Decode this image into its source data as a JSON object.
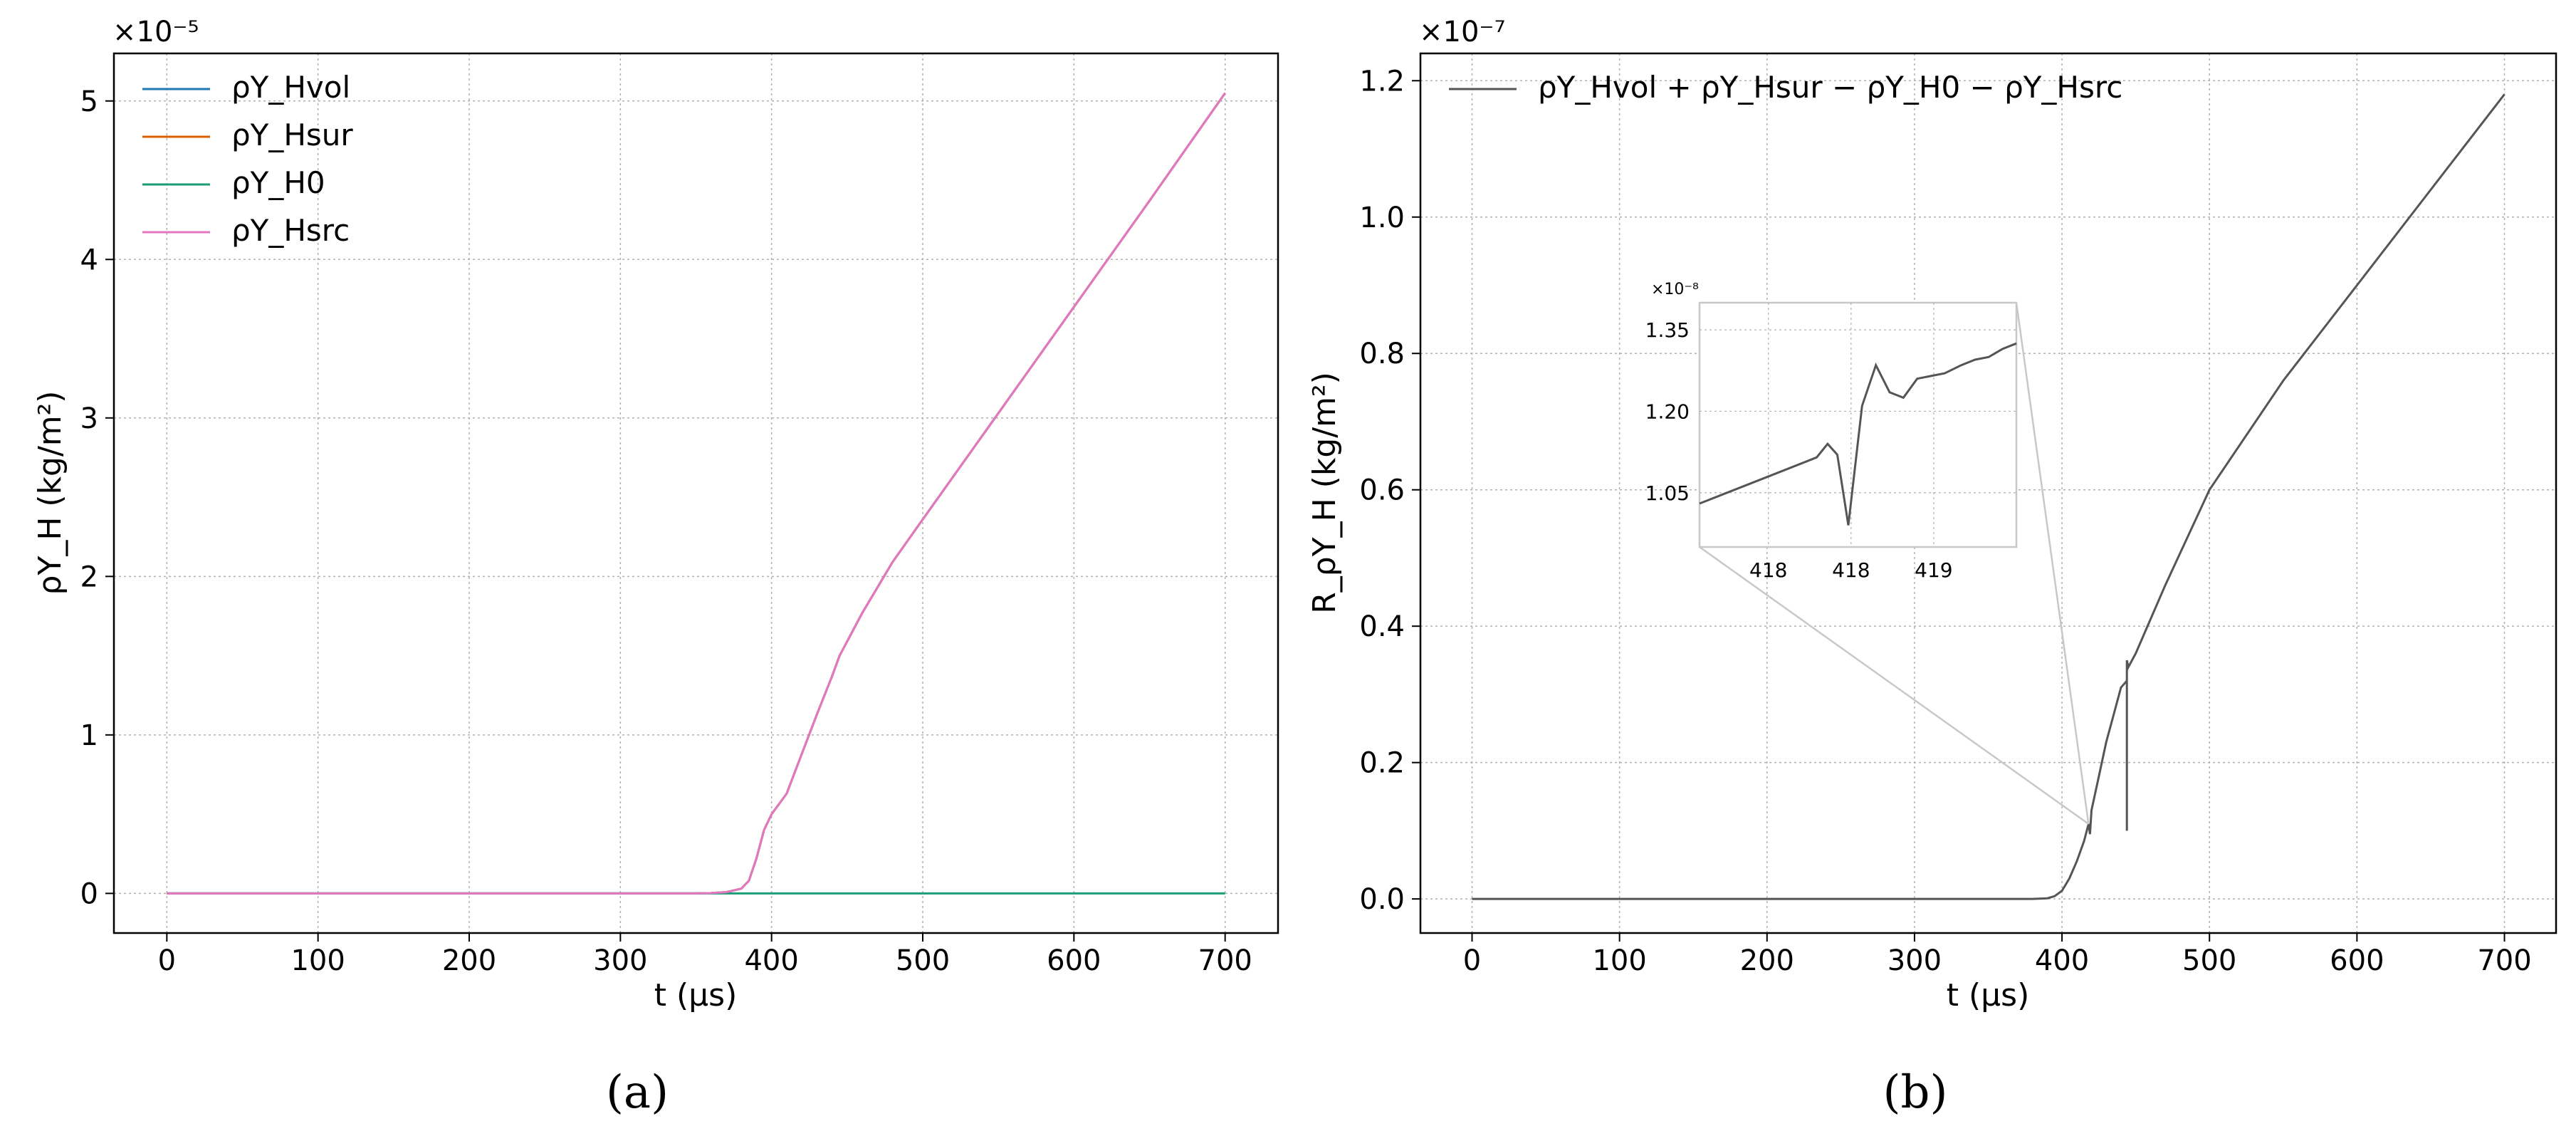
{
  "chart_data": [
    {
      "panel": "(a)",
      "type": "line",
      "xlabel": "t (μs)",
      "ylabel": "ρY_H (kg/m²)",
      "multiplier": "×10⁻⁵",
      "xlim": [
        -35,
        735
      ],
      "ylim": [
        -0.25,
        5.3
      ],
      "xticks": [
        0,
        100,
        200,
        300,
        400,
        500,
        600,
        700
      ],
      "yticks": [
        0,
        1,
        2,
        3,
        4,
        5
      ],
      "grid": true,
      "legend_position": "top-left",
      "series": [
        {
          "name": "ρY_Hvol",
          "color": "#1f77b4",
          "x": [
            0,
            350,
            360,
            370,
            380,
            385,
            390,
            395,
            400,
            410,
            420,
            430,
            440,
            445,
            460,
            480,
            500,
            550,
            600,
            650,
            700
          ],
          "y": [
            0,
            0,
            0.002,
            0.008,
            0.03,
            0.08,
            0.22,
            0.4,
            0.5,
            0.63,
            0.88,
            1.13,
            1.37,
            1.5,
            1.77,
            2.09,
            2.36,
            3.03,
            3.7,
            4.37,
            5.05
          ]
        },
        {
          "name": "ρY_Hsur",
          "color": "#d95f02",
          "x": [
            0,
            350,
            360,
            370,
            380,
            385,
            390,
            395,
            400,
            410,
            420,
            430,
            440,
            445,
            460,
            480,
            500,
            550,
            600,
            650,
            700
          ],
          "y": [
            0,
            0,
            0.002,
            0.008,
            0.03,
            0.08,
            0.22,
            0.4,
            0.5,
            0.63,
            0.88,
            1.13,
            1.37,
            1.5,
            1.77,
            2.09,
            2.36,
            3.03,
            3.7,
            4.37,
            5.05
          ]
        },
        {
          "name": "ρY_H0",
          "color": "#1b9e77",
          "x": [
            0,
            700
          ],
          "y": [
            0,
            0
          ]
        },
        {
          "name": "ρY_Hsrc",
          "color": "#e377c2",
          "x": [
            0,
            350,
            360,
            370,
            380,
            385,
            390,
            395,
            400,
            410,
            420,
            430,
            440,
            445,
            460,
            480,
            500,
            550,
            600,
            650,
            700
          ],
          "y": [
            0,
            0,
            0.002,
            0.008,
            0.03,
            0.08,
            0.22,
            0.4,
            0.5,
            0.63,
            0.88,
            1.13,
            1.37,
            1.5,
            1.77,
            2.09,
            2.36,
            3.03,
            3.7,
            4.37,
            5.05
          ]
        }
      ]
    },
    {
      "panel": "(b)",
      "type": "line",
      "xlabel": "t (μs)",
      "ylabel": "R_ρY_H (kg/m²)",
      "multiplier": "×10⁻⁷",
      "xlim": [
        -35,
        735
      ],
      "ylim": [
        -0.05,
        1.24
      ],
      "xticks": [
        0,
        100,
        200,
        300,
        400,
        500,
        600,
        700
      ],
      "yticks": [
        0.0,
        0.2,
        0.4,
        0.6,
        0.8,
        1.0,
        1.2
      ],
      "ytick_labels": [
        "0.0",
        "0.2",
        "0.4",
        "0.6",
        "0.8",
        "1.0",
        "1.2"
      ],
      "grid": true,
      "legend_position": "top-left",
      "series": [
        {
          "name": "ρY_Hvol + ρY_Hsur − ρY_H0 − ρY_Hsrc",
          "color": "#555555",
          "x": [
            0,
            380,
            390,
            395,
            400,
            405,
            410,
            415,
            418,
            419,
            420,
            425,
            430,
            435,
            440,
            444,
            444,
            444,
            445,
            450,
            470,
            500,
            550,
            600,
            650,
            700
          ],
          "y": [
            0,
            0,
            0.001,
            0.004,
            0.012,
            0.03,
            0.055,
            0.085,
            0.11,
            0.095,
            0.13,
            0.18,
            0.23,
            0.27,
            0.31,
            0.32,
            0.1,
            0.35,
            0.34,
            0.36,
            0.46,
            0.6,
            0.76,
            0.9,
            1.04,
            1.18
          ]
        }
      ],
      "inset": {
        "multiplier": "×10⁻⁸",
        "xticks": [
          417.5,
          418.1,
          418.7
        ],
        "xtick_labels": [
          "418",
          "418",
          "419"
        ],
        "yticks": [
          1.05,
          1.2,
          1.35
        ],
        "ytick_labels": [
          "1.05",
          "1.20",
          "1.35"
        ],
        "xlim": [
          417.0,
          419.3
        ],
        "ylim": [
          0.95,
          1.4
        ],
        "x": [
          417.0,
          417.3,
          417.6,
          417.85,
          417.93,
          418.0,
          418.08,
          418.18,
          418.28,
          418.38,
          418.48,
          418.58,
          418.68,
          418.78,
          418.9,
          419.0,
          419.1,
          419.2,
          419.3
        ],
        "y": [
          1.03,
          1.06,
          1.09,
          1.115,
          1.14,
          1.12,
          0.99,
          1.21,
          1.285,
          1.235,
          1.225,
          1.26,
          1.265,
          1.27,
          1.285,
          1.295,
          1.3,
          1.315,
          1.325
        ]
      }
    }
  ],
  "captions": {
    "a": "(a)",
    "b": "(b)"
  }
}
